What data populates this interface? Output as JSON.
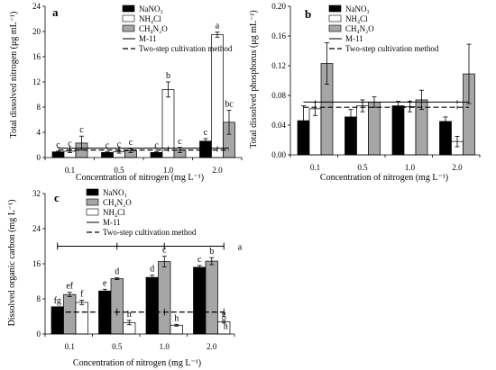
{
  "chart_data": [
    {
      "id": "a",
      "type": "bar",
      "panel_label": "a",
      "ylabel": "Total dissolved nitrogen (μg mL⁻¹)",
      "xlabel": "Concentration of nitrogen (mg L⁻¹)",
      "categories": [
        "0.1",
        "0.5",
        "1.0",
        "2.0"
      ],
      "ylim": [
        0,
        24
      ],
      "yticks": [
        "0",
        "4",
        "8",
        "12",
        "16",
        "20",
        "24"
      ],
      "ytick_values": [
        0,
        4,
        8,
        12,
        16,
        20,
        24
      ],
      "series": [
        {
          "name": "NaNO₃",
          "fill": "#000000",
          "values": [
            0.9,
            0.8,
            0.8,
            2.6
          ],
          "errors": [
            0.1,
            0.1,
            0.1,
            0.4
          ]
        },
        {
          "name": "NH₄Cl",
          "fill": "#ffffff",
          "values": [
            1.0,
            0.9,
            10.8,
            19.5
          ],
          "errors": [
            0.2,
            0.2,
            1.2,
            0.4
          ]
        },
        {
          "name": "CH₄N₂O",
          "fill": "#a6a6a6",
          "values": [
            2.3,
            1.1,
            1.2,
            5.6
          ],
          "errors": [
            1.1,
            0.3,
            0.4,
            1.9
          ]
        }
      ],
      "letters": [
        [
          "c",
          "c",
          "c"
        ],
        [
          "c",
          "c",
          "c"
        ],
        [
          "c",
          "b",
          "c"
        ],
        [
          "c",
          "a",
          "bc"
        ]
      ],
      "reference_lines": [
        {
          "name": "M-11",
          "style": "solid",
          "value": 1.5
        },
        {
          "name": "Two-step cultivation method",
          "style": "dashed",
          "value": 1.2
        }
      ]
    },
    {
      "id": "b",
      "type": "bar",
      "panel_label": "b",
      "ylabel": "Total dissolved phosphorus (μg mL⁻¹)",
      "xlabel": "Concentration of nitrogen (mg L⁻¹)",
      "categories": [
        "0.1",
        "0.5",
        "1.0",
        "2.0"
      ],
      "ylim": [
        0,
        0.2
      ],
      "yticks": [
        "0.00",
        "0.04",
        "0.08",
        "0.12",
        "0.16",
        "0.20"
      ],
      "ytick_values": [
        0,
        0.04,
        0.08,
        0.12,
        0.16,
        0.2
      ],
      "series": [
        {
          "name": "NaNO₃",
          "fill": "#000000",
          "values": [
            0.046,
            0.051,
            0.066,
            0.045
          ],
          "errors": [
            0.02,
            0.01,
            0.006,
            0.006
          ]
        },
        {
          "name": "NH₄Cl",
          "fill": "#ffffff",
          "values": [
            0.062,
            0.066,
            0.065,
            0.018
          ],
          "errors": [
            0.009,
            0.008,
            0.007,
            0.007
          ]
        },
        {
          "name": "CH₄N₂O",
          "fill": "#a6a6a6",
          "values": [
            0.123,
            0.071,
            0.074,
            0.109
          ],
          "errors": [
            0.028,
            0.007,
            0.013,
            0.04
          ]
        }
      ],
      "letters": [],
      "reference_lines": [
        {
          "name": "M-11",
          "style": "solid",
          "value": 0.071
        },
        {
          "name": "Two-step cultivation method",
          "style": "dashed",
          "value": 0.064
        }
      ]
    },
    {
      "id": "c",
      "type": "bar",
      "panel_label": "c",
      "ylabel": "Dissolved organic carbon (mg L⁻¹)",
      "xlabel": "Concentration of nitrogen (mg L⁻¹)",
      "categories": [
        "0.1",
        "0.5",
        "1.0",
        "2.0"
      ],
      "ylim": [
        0,
        32
      ],
      "yticks": [
        "0",
        "8",
        "16",
        "24",
        "32"
      ],
      "ytick_values": [
        0,
        8,
        16,
        24,
        32
      ],
      "series": [
        {
          "name": "NaNO₃",
          "fill": "#000000",
          "values": [
            6.2,
            9.8,
            12.9,
            15.2
          ],
          "errors": [
            0,
            0.4,
            0.5,
            0.4
          ]
        },
        {
          "name": "CH₄N₂O",
          "fill": "#a6a6a6",
          "values": [
            9.0,
            12.6,
            16.5,
            16.6
          ],
          "errors": [
            0.5,
            0.2,
            1.2,
            0.8
          ]
        },
        {
          "name": "NH₄Cl",
          "fill": "#ffffff",
          "values": [
            7.2,
            2.6,
            2.0,
            2.8
          ],
          "errors": [
            0.5,
            0.5,
            0.2,
            0.3
          ]
        }
      ],
      "letters": [
        [
          "fg",
          "ef",
          "f"
        ],
        [
          "e",
          "d",
          "h"
        ],
        [
          "d",
          "c",
          "h"
        ],
        [
          "c",
          "b",
          "g"
        ]
      ],
      "extra_letters": [
        {
          "text": "h",
          "category": 3,
          "series": 2,
          "value": 2.8
        },
        {
          "text": "a",
          "category": 3,
          "series": 2,
          "value": 20.0
        }
      ],
      "reference_lines": [
        {
          "name": "M-11",
          "style": "solid-errorbar",
          "value": 20.0,
          "error": 0.6
        },
        {
          "name": "Two-step cultivation method",
          "style": "dashed-errorbar",
          "value": 5.0,
          "error": 0.4
        }
      ]
    }
  ]
}
